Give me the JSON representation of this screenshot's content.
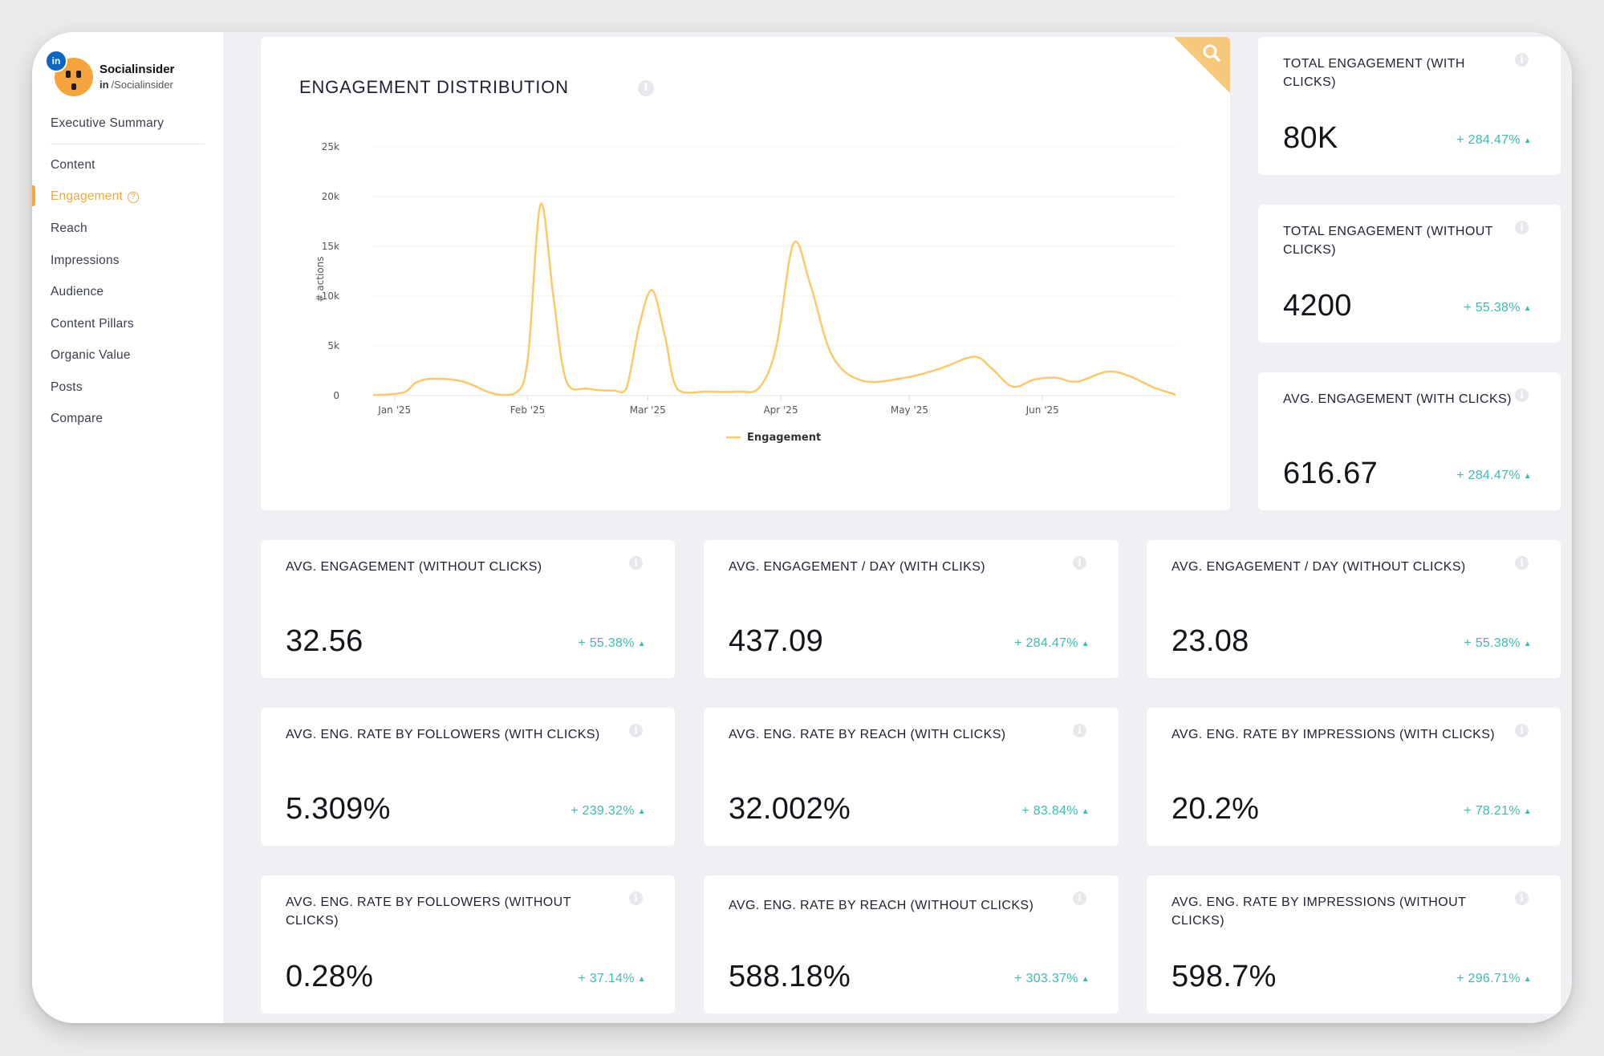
{
  "profile": {
    "name": "Socialinsider",
    "network_badge": "in",
    "handle_prefix": "in",
    "handle": "/Socialinsider"
  },
  "nav": {
    "items": [
      {
        "label": "Executive Summary"
      },
      {
        "label": "Content"
      },
      {
        "label": "Engagement",
        "active": true
      },
      {
        "label": "Reach"
      },
      {
        "label": "Impressions"
      },
      {
        "label": "Audience"
      },
      {
        "label": "Content Pillars"
      },
      {
        "label": "Organic Value"
      },
      {
        "label": "Posts"
      },
      {
        "label": "Compare"
      }
    ]
  },
  "chart_card": {
    "title": "ENGAGEMENT DISTRIBUTION",
    "info": "i"
  },
  "chart_data": {
    "type": "line",
    "title": "ENGAGEMENT DISTRIBUTION",
    "ylabel": "# actions",
    "xlabel": "",
    "ylim": [
      0,
      25000
    ],
    "yticks": [
      "0",
      "5k",
      "10k",
      "15k",
      "20k",
      "25k"
    ],
    "xticks": [
      "Jan '25",
      "Feb '25",
      "Mar '25",
      "Apr '25",
      "May '25",
      "Jun '25"
    ],
    "legend": "bottom-center",
    "grid": true,
    "series": [
      {
        "name": "Engagement",
        "color": "#fbc96a",
        "points": [
          [
            "2024-12-27",
            50
          ],
          [
            "2025-01-03",
            300
          ],
          [
            "2025-01-06",
            1300
          ],
          [
            "2025-01-10",
            1700
          ],
          [
            "2025-01-17",
            1400
          ],
          [
            "2025-01-24",
            200
          ],
          [
            "2025-01-29",
            200
          ],
          [
            "2025-02-01",
            3500
          ],
          [
            "2025-02-04",
            19200
          ],
          [
            "2025-02-07",
            10000
          ],
          [
            "2025-02-10",
            1500
          ],
          [
            "2025-02-15",
            700
          ],
          [
            "2025-02-21",
            500
          ],
          [
            "2025-02-24",
            700
          ],
          [
            "2025-02-27",
            7000
          ],
          [
            "2025-03-02",
            10600
          ],
          [
            "2025-03-05",
            6000
          ],
          [
            "2025-03-08",
            600
          ],
          [
            "2025-03-15",
            400
          ],
          [
            "2025-03-22",
            400
          ],
          [
            "2025-03-27",
            800
          ],
          [
            "2025-03-31",
            5000
          ],
          [
            "2025-04-04",
            15300
          ],
          [
            "2025-04-08",
            11000
          ],
          [
            "2025-04-13",
            4000
          ],
          [
            "2025-04-20",
            1500
          ],
          [
            "2025-04-30",
            1800
          ],
          [
            "2025-05-08",
            2700
          ],
          [
            "2025-05-16",
            3900
          ],
          [
            "2025-05-20",
            2800
          ],
          [
            "2025-05-25",
            900
          ],
          [
            "2025-05-30",
            1600
          ],
          [
            "2025-06-04",
            1800
          ],
          [
            "2025-06-09",
            1400
          ],
          [
            "2025-06-16",
            2400
          ],
          [
            "2025-06-21",
            2000
          ],
          [
            "2025-06-27",
            800
          ],
          [
            "2025-07-02",
            100
          ]
        ]
      }
    ]
  },
  "kpis": [
    {
      "title": "TOTAL ENGAGEMENT (WITH CLICKS)",
      "value": "80K",
      "change": "+ 284.47%"
    },
    {
      "title": "TOTAL ENGAGEMENT (WITHOUT CLICKS)",
      "value": "4200",
      "change": "+ 55.38%"
    },
    {
      "title": "AVG. ENGAGEMENT (WITH CLICKS)",
      "value": "616.67",
      "change": "+ 284.47%"
    },
    {
      "title": "AVG. ENGAGEMENT (WITHOUT CLICKS)",
      "value": "32.56",
      "change": "+ 55.38%"
    },
    {
      "title": "AVG. ENGAGEMENT / DAY (WITH CLIKS)",
      "value": "437.09",
      "change": "+ 284.47%"
    },
    {
      "title": "AVG. ENGAGEMENT / DAY (WITHOUT CLICKS)",
      "value": "23.08",
      "change": "+ 55.38%"
    },
    {
      "title": "AVG. ENG. RATE BY FOLLOWERS (WITH CLICKS)",
      "value": "5.309%",
      "change": "+ 239.32%"
    },
    {
      "title": "AVG. ENG. RATE BY REACH (WITH CLICKS)",
      "value": "32.002%",
      "change": "+ 83.84%"
    },
    {
      "title": "AVG. ENG. RATE BY IMPRESSIONS (WITH CLICKS)",
      "value": "20.2%",
      "change": "+ 78.21%"
    },
    {
      "title": "AVG. ENG. RATE BY FOLLOWERS (WITHOUT CLICKS)",
      "value": "0.28%",
      "change": "+ 37.14%"
    },
    {
      "title": "AVG. ENG. RATE BY REACH (WITHOUT CLICKS)",
      "value": "588.18%",
      "change": "+ 303.37%"
    },
    {
      "title": "AVG. ENG. RATE BY IMPRESSIONS (WITHOUT CLICKS)",
      "value": "598.7%",
      "change": "+ 296.71%"
    }
  ],
  "colors": {
    "accent": "#f2a93b",
    "positive": "#3fbcb0",
    "line": "#fbc96a"
  }
}
